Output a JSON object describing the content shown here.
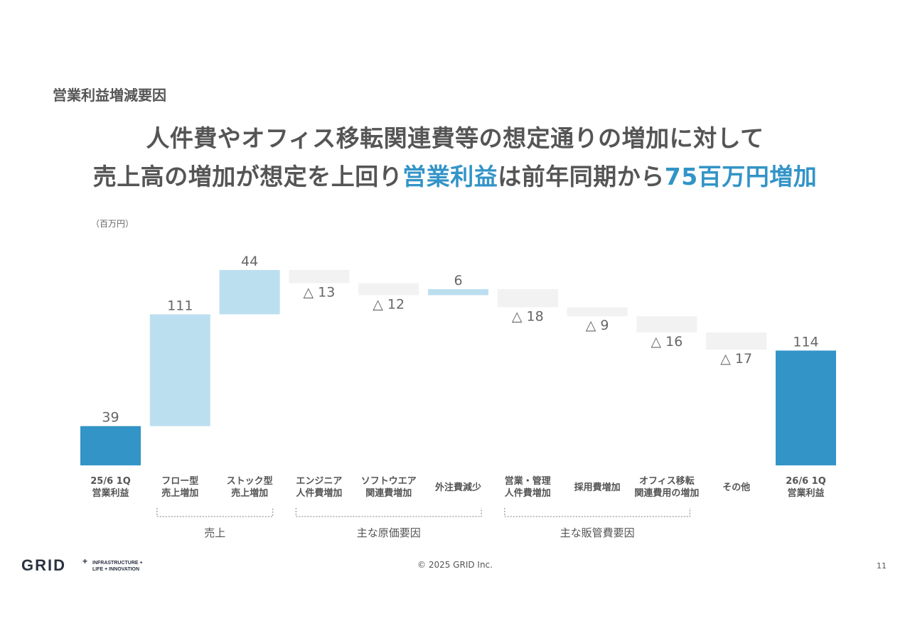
{
  "header": {
    "section_title": "営業利益増減要因",
    "headline_line1": "人件費やオフィス移転関連費等の想定通りの増加に対して",
    "headline_line2_a": "売上高の増加が想定を上回り",
    "headline_line2_highlight1": "営業利益",
    "headline_line2_b": "は前年同期から",
    "headline_line2_highlight2": "75百万円増加"
  },
  "unit_label": "（百万円）",
  "colors": {
    "total": "#3394c7",
    "increase": "#bcdff0",
    "decrease": "#f2f2f2",
    "text": "#555555",
    "highlight": "#3394c7"
  },
  "chart_data": {
    "type": "bar",
    "subtype": "waterfall",
    "categories": [
      [
        "25/6 1Q",
        "営業利益"
      ],
      [
        "フロー型",
        "売上増加"
      ],
      [
        "ストック型",
        "売上増加"
      ],
      [
        "エンジニア",
        "人件費増加"
      ],
      [
        "ソフトウエア",
        "関連費増加"
      ],
      [
        "外注費減少"
      ],
      [
        "営業・管理",
        "人件費増加"
      ],
      [
        "採用費増加"
      ],
      [
        "オフィス移転",
        "関連費用の増加"
      ],
      [
        "その他"
      ],
      [
        "26/6 1Q",
        "営業利益"
      ]
    ],
    "values": [
      39,
      111,
      44,
      -13,
      -12,
      6,
      -18,
      -9,
      -16,
      -17,
      114
    ],
    "kinds": [
      "total",
      "increase",
      "increase",
      "decrease",
      "decrease",
      "increase",
      "decrease",
      "decrease",
      "decrease",
      "decrease",
      "total"
    ],
    "value_labels": [
      "39",
      "111",
      "44",
      "△ 13",
      "△ 12",
      "6",
      "△ 18",
      "△ 9",
      "△ 16",
      "△ 17",
      "114"
    ],
    "groups": [
      {
        "label": "売上",
        "from": 1,
        "to": 2
      },
      {
        "label": "主な原価要因",
        "from": 3,
        "to": 5
      },
      {
        "label": "主な販管費要因",
        "from": 6,
        "to": 8
      }
    ],
    "ylim": [
      0,
      194
    ]
  },
  "footer": {
    "copyright": "© 2025 GRID Inc.",
    "page_number": "11",
    "logo_text": "GRID",
    "logo_tag1": "INFRASTRUCTURE +",
    "logo_tag2": "LIFE + INNOVATION"
  }
}
